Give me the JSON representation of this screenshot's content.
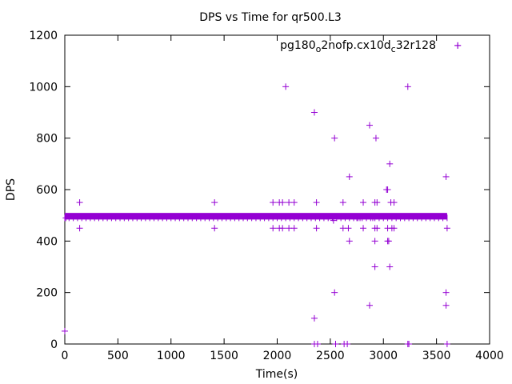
{
  "chart_data": {
    "type": "scatter",
    "title": "DPS vs Time for qr500.L3",
    "xlabel": "Time(s)",
    "ylabel": "DPS",
    "xlim": [
      0,
      4000
    ],
    "ylim": [
      0,
      1200
    ],
    "x_ticks": [
      "0",
      "500",
      "1000",
      "1500",
      "2000",
      "2500",
      "3000",
      "3500",
      "4000"
    ],
    "y_ticks": [
      "0",
      "200",
      "400",
      "600",
      "800",
      "1000",
      "1200"
    ],
    "grid": false,
    "legend_position": "top-right",
    "marker": "plus",
    "series": [
      {
        "name_parts": [
          "pg180",
          "o",
          "2nofp.cx10d",
          "c",
          "32r128"
        ],
        "color": "#9400d3",
        "baseline": {
          "x_start": 0,
          "x_end": 3600,
          "y": 500,
          "note_y_low": 490
        },
        "points": [
          [
            0,
            50
          ],
          [
            10,
            490
          ],
          [
            140,
            550
          ],
          [
            140,
            450
          ],
          [
            1410,
            550
          ],
          [
            1410,
            450
          ],
          [
            1960,
            550
          ],
          [
            1960,
            450
          ],
          [
            2020,
            550
          ],
          [
            2020,
            450
          ],
          [
            2050,
            550
          ],
          [
            2050,
            450
          ],
          [
            2080,
            1000
          ],
          [
            2110,
            550
          ],
          [
            2110,
            450
          ],
          [
            2160,
            550
          ],
          [
            2160,
            450
          ],
          [
            2350,
            900
          ],
          [
            2350,
            100
          ],
          [
            2370,
            550
          ],
          [
            2370,
            450
          ],
          [
            2350,
            0
          ],
          [
            2380,
            0
          ],
          [
            2530,
            480
          ],
          [
            2540,
            800
          ],
          [
            2540,
            200
          ],
          [
            2550,
            0
          ],
          [
            2620,
            550
          ],
          [
            2620,
            450
          ],
          [
            2630,
            0
          ],
          [
            2660,
            0
          ],
          [
            2670,
            450
          ],
          [
            2680,
            400
          ],
          [
            2680,
            650
          ],
          [
            2750,
            490
          ],
          [
            2780,
            490
          ],
          [
            2810,
            550
          ],
          [
            2810,
            450
          ],
          [
            2870,
            850
          ],
          [
            2870,
            150
          ],
          [
            2900,
            490
          ],
          [
            2920,
            550
          ],
          [
            2920,
            450
          ],
          [
            2920,
            400
          ],
          [
            2920,
            300
          ],
          [
            2930,
            800
          ],
          [
            2940,
            550
          ],
          [
            2940,
            450
          ],
          [
            3030,
            600
          ],
          [
            3040,
            600
          ],
          [
            3040,
            400
          ],
          [
            3050,
            400
          ],
          [
            3040,
            450
          ],
          [
            3060,
            700
          ],
          [
            3060,
            300
          ],
          [
            3070,
            550
          ],
          [
            3080,
            450
          ],
          [
            3100,
            550
          ],
          [
            3100,
            450
          ],
          [
            3230,
            1000
          ],
          [
            3230,
            0
          ],
          [
            3240,
            0
          ],
          [
            3590,
            650
          ],
          [
            3590,
            200
          ],
          [
            3590,
            150
          ],
          [
            3600,
            450
          ],
          [
            3600,
            0
          ],
          [
            3700,
            1160
          ]
        ]
      }
    ]
  }
}
